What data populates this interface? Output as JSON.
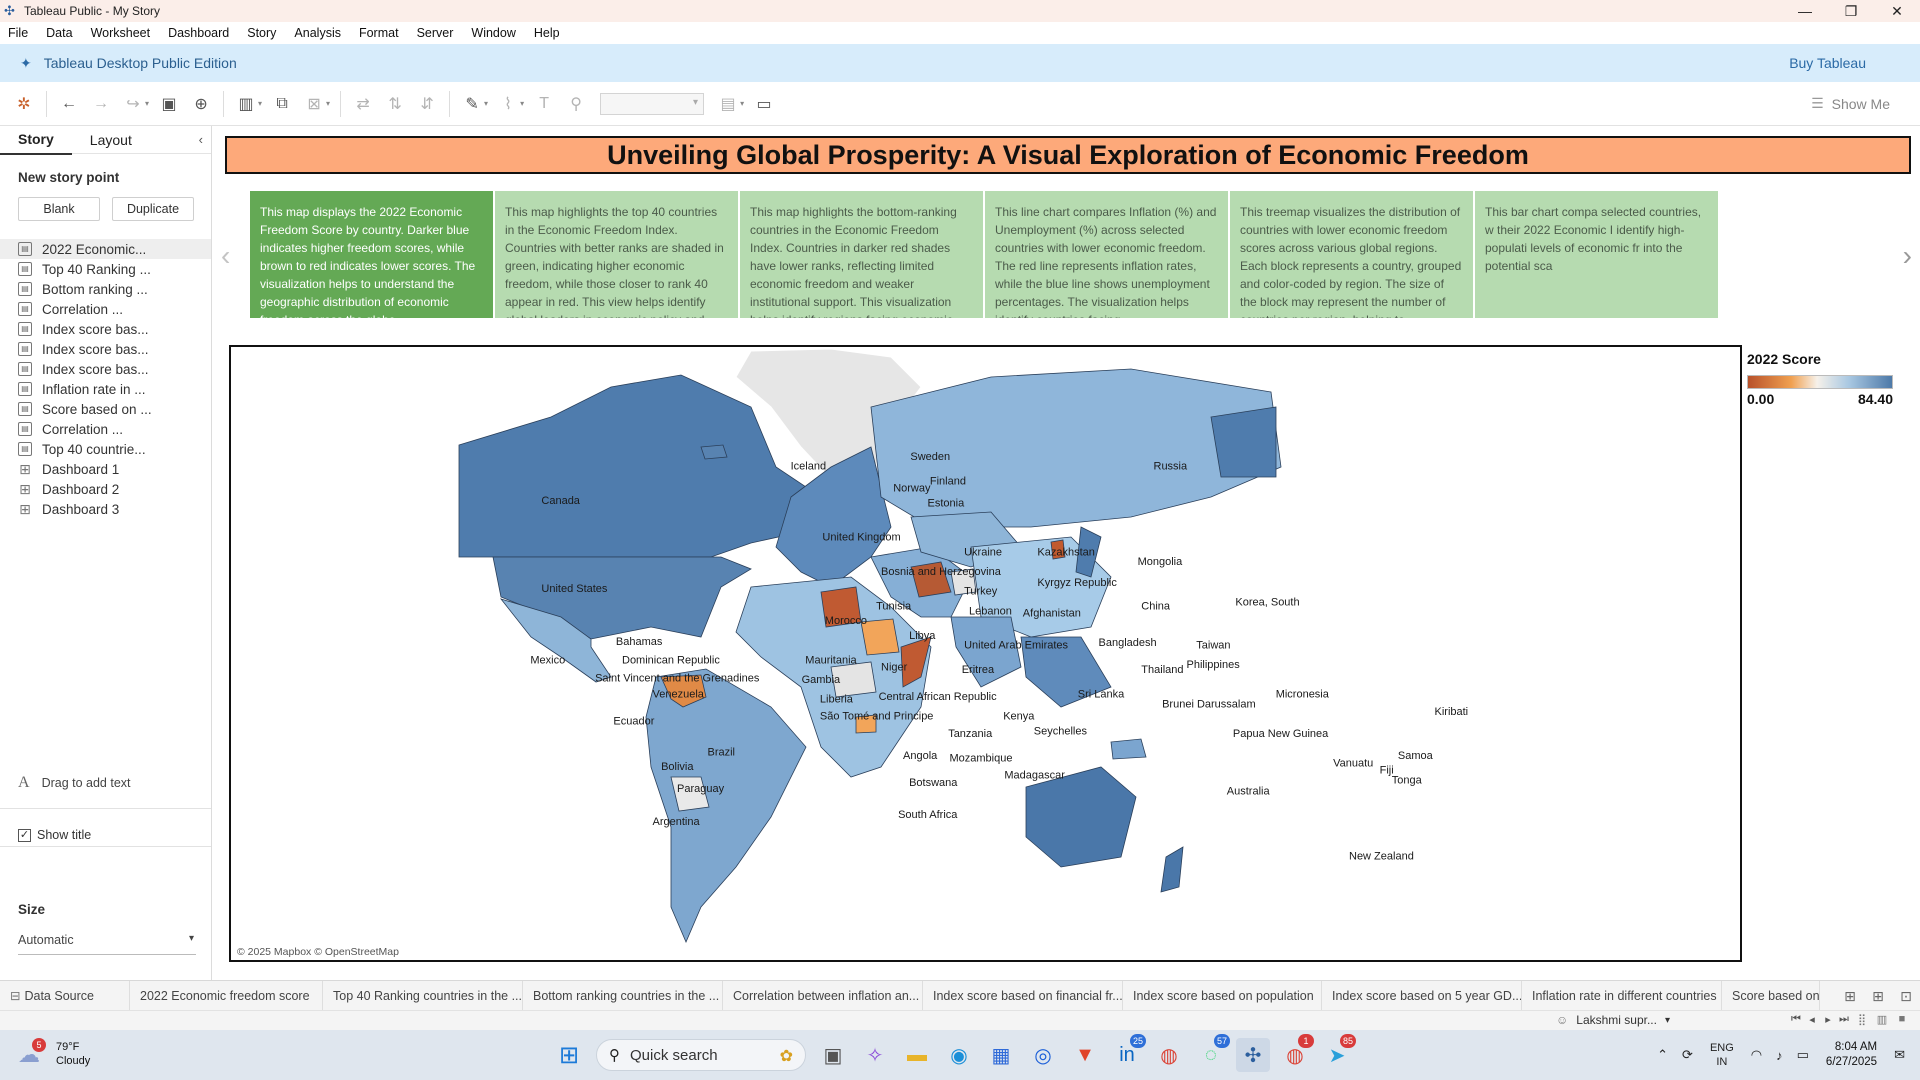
{
  "window": {
    "title": "Tableau Public - My Story",
    "minimize": "—",
    "maximize": "❐",
    "close": "✕"
  },
  "menu": [
    "File",
    "Data",
    "Worksheet",
    "Dashboard",
    "Story",
    "Analysis",
    "Format",
    "Server",
    "Window",
    "Help"
  ],
  "banner": {
    "edition": "Tableau Desktop Public Edition",
    "buy": "Buy Tableau"
  },
  "toolbar": {
    "show_me": "Show Me"
  },
  "left_panel": {
    "tabs": [
      "Story",
      "Layout"
    ],
    "new_story_point": "New story point",
    "blank_label": "Blank",
    "duplicate_label": "Duplicate",
    "sheets": [
      {
        "label": "2022 Economic...",
        "kind": "sheet"
      },
      {
        "label": "Top 40 Ranking ...",
        "kind": "sheet"
      },
      {
        "label": "Bottom ranking ...",
        "kind": "sheet"
      },
      {
        "label": "Correlation ...",
        "kind": "sheet"
      },
      {
        "label": "Index score bas...",
        "kind": "sheet"
      },
      {
        "label": "Index score bas...",
        "kind": "sheet"
      },
      {
        "label": "Index score bas...",
        "kind": "sheet"
      },
      {
        "label": "Inflation rate in ...",
        "kind": "sheet"
      },
      {
        "label": "Score based on ...",
        "kind": "sheet"
      },
      {
        "label": "Correlation ...",
        "kind": "sheet"
      },
      {
        "label": "Top 40 countrie...",
        "kind": "sheet"
      },
      {
        "label": "Dashboard 1",
        "kind": "dashboard"
      },
      {
        "label": "Dashboard 2",
        "kind": "dashboard"
      },
      {
        "label": "Dashboard 3",
        "kind": "dashboard"
      }
    ],
    "drag_text": "Drag to add text",
    "show_title": "Show title",
    "size_label": "Size",
    "size_value": "Automatic"
  },
  "story": {
    "title": "Unveiling Global Prosperity: A Visual Exploration of Economic Freedom",
    "points": [
      "This map displays the 2022 Economic Freedom Score by country. Darker blue indicates higher freedom scores, while brown to red indicates lower scores. The visualization helps to understand the geographic distribution of economic freedom across the globe.",
      "This map highlights the top 40 countries in the Economic Freedom Index. Countries with better ranks are shaded in green, indicating higher economic freedom, while those closer to rank 40 appear in red. This view helps identify global leaders in economic policy and market openness.",
      "This map highlights the bottom-ranking countries in the Economic Freedom Index. Countries in darker red shades have lower ranks, reflecting limited economic freedom and weaker institutional support. This visualization helps identify regions facing economic and governance",
      "This line chart compares Inflation (%) and Unemployment (%) across selected countries with lower economic freedom. The red line represents inflation rates, while the blue line shows unemployment percentages. The visualization helps identify countries facing",
      "This treemap visualizes the distribution of countries with lower economic freedom scores across various global regions. Each block represents a country, grouped and color-coded by region. The size of the block may represent the number of countries per region, helping to",
      "This bar chart compa selected countries, w their 2022 Economic I identify high-populati levels of economic fr into the potential sca"
    ],
    "map_credit": "© 2025 Mapbox © OpenStreetMap",
    "legend": {
      "title": "2022 Score",
      "min": "0.00",
      "max": "84.40"
    },
    "map_labels": [
      "Canada",
      "United States",
      "Mexico",
      "Bahamas",
      "Dominican Republic",
      "Saint Vincent and the Grenadines",
      "Venezuela",
      "Ecuador",
      "Brazil",
      "Bolivia",
      "Paraguay",
      "Argentina",
      "Iceland",
      "Sweden",
      "Norway",
      "Finland",
      "Estonia",
      "United Kingdom",
      "Ukraine",
      "Bosnia and Herzegovina",
      "Turkey",
      "Tunisia",
      "Morocco",
      "Lebanon",
      "Libya",
      "Mauritania",
      "Niger",
      "Gambia",
      "Liberia",
      "Central African Republic",
      "São Tomé and Principe",
      "Eritrea",
      "Kenya",
      "Tanzania",
      "Seychelles",
      "Angola",
      "Mozambique",
      "Botswana",
      "Madagascar",
      "South Africa",
      "United Arab Emirates",
      "Afghanistan",
      "Russia",
      "Kazakhstan",
      "Kyrgyz Republic",
      "Mongolia",
      "China",
      "Korea, South",
      "Bangladesh",
      "Thailand",
      "Sri Lanka",
      "Taiwan",
      "Philippines",
      "Brunei Darussalam",
      "Papua New Guinea",
      "Micronesia",
      "Kiribati",
      "Vanuatu",
      "Fiji",
      "Samoa",
      "Tonga",
      "Australia",
      "New Zealand"
    ]
  },
  "chart_data": {
    "type": "map",
    "title": "2022 Score",
    "measure": "2022 Score",
    "color_range": [
      0.0,
      84.4
    ],
    "colors": {
      "low": "#b8512a",
      "mid_low": "#f0a050",
      "mid": "#f6f1ea",
      "mid_high": "#a9c8e2",
      "high": "#4d79a8"
    }
  },
  "sheet_tabs": [
    "Data Source",
    "2022 Economic freedom score",
    "Top 40 Ranking countries in the ...",
    "Bottom ranking countries in the ...",
    "Correlation between inflation an...",
    "Index score based on financial fr...",
    "Index score based on population",
    "Index score based on 5 year GD...",
    "Inflation rate in different countries",
    "Score based on ur"
  ],
  "status": {
    "user": "Lakshmi supr..."
  },
  "taskbar": {
    "weather_badge": "5",
    "temperature": "79°F",
    "condition": "Cloudy",
    "search": "Quick search",
    "linkedin_badge": "25",
    "whatsapp_badge": "57",
    "chrome_badge": "1",
    "telegram_badge": "85",
    "lang_1": "ENG",
    "lang_2": "IN",
    "time": "8:04 AM",
    "date": "6/27/2025"
  }
}
